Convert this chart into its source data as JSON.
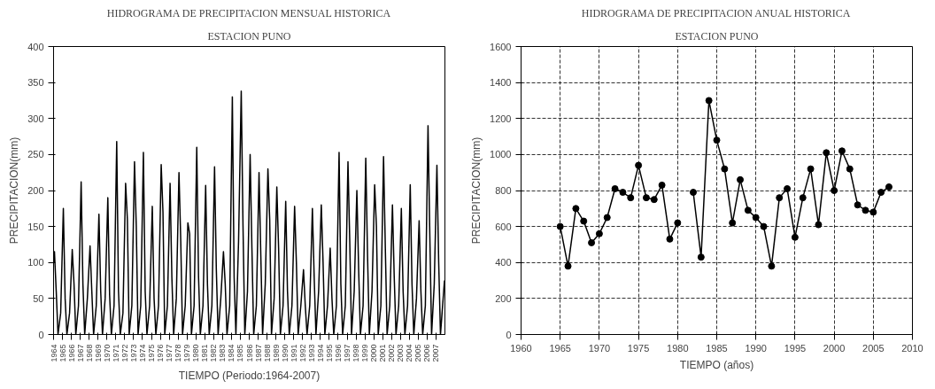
{
  "chart_data": [
    {
      "type": "line",
      "title": "HIDROGRAMA DE PRECIPITACION MENSUAL HISTORICA",
      "subtitle": "ESTACION PUNO",
      "xlabel": "TIEMPO (Periodo:1964-2007)",
      "ylabel": "PRECIPITACION(mm)",
      "series": [
        {
          "color": "#000000",
          "x": [
            1964.0,
            1964.1,
            1964.3,
            1964.5,
            1964.8,
            1965.1,
            1965.3,
            1965.5,
            1965.8,
            1966.1,
            1966.3,
            1966.5,
            1966.8,
            1967.1,
            1967.3,
            1967.5,
            1967.8,
            1968.1,
            1968.3,
            1968.5,
            1968.8,
            1969.1,
            1969.3,
            1969.5,
            1969.8,
            1970.1,
            1970.3,
            1970.5,
            1970.8,
            1971.1,
            1971.3,
            1971.5,
            1971.8,
            1972.1,
            1972.3,
            1972.5,
            1972.8,
            1973.1,
            1973.3,
            1973.5,
            1973.8,
            1974.1,
            1974.3,
            1974.5,
            1974.8,
            1975.1,
            1975.3,
            1975.5,
            1975.8,
            1976.1,
            1976.3,
            1976.5,
            1976.8,
            1977.1,
            1977.3,
            1977.5,
            1977.8,
            1978.1,
            1978.3,
            1978.5,
            1978.8,
            1979.1,
            1979.3,
            1979.5,
            1979.8,
            1980.1,
            1980.3,
            1980.5,
            1980.8,
            1981.1,
            1981.3,
            1981.5,
            1981.8,
            1982.1,
            1982.3,
            1982.5,
            1982.8,
            1983.1,
            1983.3,
            1983.5,
            1983.8,
            1984.1,
            1984.3,
            1984.5,
            1984.8,
            1985.1,
            1985.3,
            1985.5,
            1985.8,
            1986.1,
            1986.3,
            1986.5,
            1986.8,
            1987.1,
            1987.3,
            1987.5,
            1987.8,
            1988.1,
            1988.3,
            1988.5,
            1988.8,
            1989.1,
            1989.3,
            1989.5,
            1989.8,
            1990.1,
            1990.3,
            1990.5,
            1990.8,
            1991.1,
            1991.3,
            1991.5,
            1991.8,
            1992.1,
            1992.3,
            1992.5,
            1992.8,
            1993.1,
            1993.3,
            1993.5,
            1993.8,
            1994.1,
            1994.3,
            1994.5,
            1994.8,
            1995.1,
            1995.3,
            1995.5,
            1995.8,
            1996.1,
            1996.3,
            1996.5,
            1996.8,
            1997.1,
            1997.3,
            1997.5,
            1997.8,
            1998.1,
            1998.3,
            1998.5,
            1998.8,
            1999.1,
            1999.3,
            1999.5,
            1999.8,
            2000.1,
            2000.3,
            2000.5,
            2000.8,
            2001.1,
            2001.3,
            2001.5,
            2001.8,
            2002.1,
            2002.3,
            2002.5,
            2002.8,
            2003.1,
            2003.3,
            2003.5,
            2003.8,
            2004.1,
            2004.3,
            2004.5,
            2004.8,
            2005.1,
            2005.3,
            2005.5,
            2005.8,
            2006.1,
            2006.3,
            2006.5,
            2006.8,
            2007.1,
            2007.3,
            2007.5,
            2007.8,
            2007.95
          ],
          "values": [
            100,
            115,
            60,
            0,
            30,
            175,
            50,
            0,
            30,
            118,
            70,
            0,
            40,
            212,
            70,
            0,
            50,
            123,
            60,
            0,
            40,
            167,
            60,
            0,
            50,
            190,
            55,
            0,
            40,
            268,
            60,
            0,
            30,
            210,
            160,
            0,
            40,
            240,
            150,
            0,
            40,
            253,
            60,
            0,
            40,
            178,
            50,
            0,
            40,
            236,
            170,
            0,
            40,
            210,
            80,
            0,
            50,
            225,
            130,
            0,
            40,
            155,
            140,
            0,
            40,
            260,
            80,
            0,
            40,
            207,
            70,
            0,
            40,
            233,
            90,
            0,
            50,
            115,
            70,
            0,
            40,
            330,
            80,
            0,
            130,
            338,
            150,
            0,
            60,
            250,
            120,
            0,
            40,
            225,
            110,
            0,
            70,
            230,
            160,
            0,
            50,
            205,
            120,
            0,
            40,
            185,
            60,
            0,
            40,
            178,
            100,
            0,
            40,
            90,
            40,
            0,
            40,
            175,
            80,
            0,
            60,
            180,
            100,
            0,
            40,
            120,
            50,
            0,
            40,
            253,
            70,
            0,
            40,
            240,
            130,
            0,
            60,
            200,
            90,
            0,
            40,
            245,
            110,
            0,
            60,
            208,
            150,
            0,
            40,
            247,
            120,
            0,
            40,
            180,
            80,
            0,
            40,
            175,
            60,
            0,
            40,
            208,
            70,
            0,
            50,
            158,
            60,
            0,
            40,
            290,
            140,
            0,
            70,
            235,
            100,
            0,
            50,
            75
          ]
        }
      ],
      "xlim": [
        1964,
        2008
      ],
      "ylim": [
        0,
        400
      ],
      "yticks": [
        0,
        50,
        100,
        150,
        200,
        250,
        300,
        350,
        400
      ],
      "xticks": [
        1964,
        1965,
        1966,
        1967,
        1968,
        1969,
        1970,
        1971,
        1972,
        1973,
        1974,
        1975,
        1976,
        1977,
        1978,
        1979,
        1980,
        1981,
        1982,
        1983,
        1984,
        1985,
        1986,
        1987,
        1988,
        1989,
        1990,
        1991,
        1992,
        1993,
        1994,
        1995,
        1996,
        1997,
        1998,
        1999,
        2000,
        2001,
        2002,
        2003,
        2004,
        2005,
        2006,
        2007
      ],
      "grid": false,
      "marker": "none",
      "line_style": "solid"
    },
    {
      "type": "line",
      "title": "HIDROGRAMA DE PRECIPITACION ANUAL HISTORICA",
      "subtitle": "ESTACION PUNO",
      "xlabel": "TIEMPO (años)",
      "ylabel": "PRECIPITACION(mm)",
      "x": [
        1965,
        1966,
        1967,
        1968,
        1969,
        1970,
        1971,
        1972,
        1973,
        1974,
        1975,
        1976,
        1977,
        1978,
        1979,
        1980,
        1981,
        1982,
        1983,
        1984,
        1985,
        1986,
        1987,
        1988,
        1989,
        1990,
        1991,
        1992,
        1993,
        1994,
        1995,
        1996,
        1997,
        1998,
        1999,
        2000,
        2001,
        2002,
        2003,
        2004,
        2005,
        2006,
        2007
      ],
      "series": [
        {
          "color": "#000000",
          "values": [
            600,
            380,
            700,
            630,
            510,
            560,
            650,
            810,
            790,
            760,
            940,
            760,
            750,
            830,
            530,
            620,
            null,
            790,
            430,
            1300,
            1080,
            920,
            620,
            860,
            690,
            650,
            600,
            380,
            760,
            810,
            540,
            760,
            920,
            610,
            1010,
            800,
            1020,
            920,
            720,
            690,
            680,
            790,
            820
          ]
        }
      ],
      "xlim": [
        1960,
        2010
      ],
      "xticks": [
        1960,
        1965,
        1970,
        1975,
        1980,
        1985,
        1990,
        1995,
        2000,
        2005,
        2010
      ],
      "ylim": [
        0,
        1600
      ],
      "yticks": [
        0,
        200,
        400,
        600,
        800,
        1000,
        1200,
        1400,
        1600
      ],
      "grid": true,
      "marker": "circle",
      "line_style": "solid"
    }
  ]
}
